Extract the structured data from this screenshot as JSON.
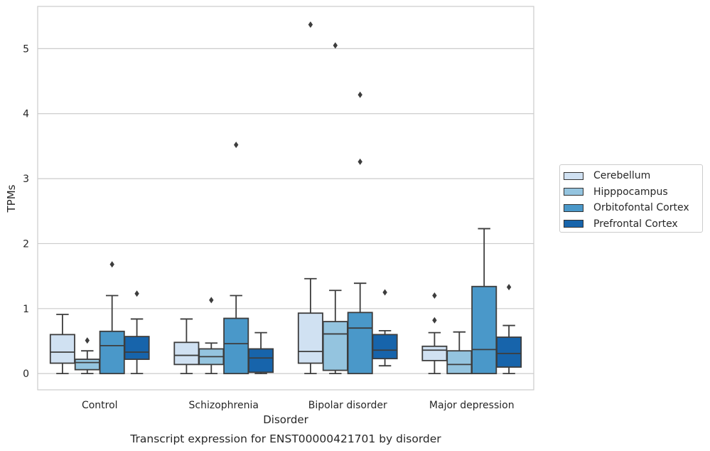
{
  "chart_data": {
    "type": "boxplot",
    "title": "Transcript expression for ENST00000421701 by disorder",
    "xlabel": "Disorder",
    "ylabel": "TPMs",
    "ylim": [
      -0.25,
      5.65
    ],
    "yticks": [
      0,
      1,
      2,
      3,
      4,
      5
    ],
    "categories": [
      "Control",
      "Schizophrenia",
      "Bipolar disorder",
      "Major depression"
    ],
    "grid": "horizontal",
    "legend_position": "right",
    "series": [
      {
        "name": "Cerebellum",
        "color": "#d0e1f2",
        "boxes": [
          {
            "whislo": 0.0,
            "q1": 0.16,
            "med": 0.33,
            "q3": 0.6,
            "whishi": 0.91,
            "fliers": []
          },
          {
            "whislo": 0.0,
            "q1": 0.14,
            "med": 0.28,
            "q3": 0.48,
            "whishi": 0.84,
            "fliers": []
          },
          {
            "whislo": 0.0,
            "q1": 0.16,
            "med": 0.34,
            "q3": 0.93,
            "whishi": 1.46,
            "fliers": [
              5.37
            ]
          },
          {
            "whislo": 0.0,
            "q1": 0.2,
            "med": 0.36,
            "q3": 0.42,
            "whishi": 0.63,
            "fliers": [
              0.82,
              1.2
            ]
          }
        ]
      },
      {
        "name": "Hipppocampus",
        "color": "#94c4df",
        "boxes": [
          {
            "whislo": 0.0,
            "q1": 0.06,
            "med": 0.17,
            "q3": 0.22,
            "whishi": 0.35,
            "fliers": [
              0.51
            ]
          },
          {
            "whislo": 0.0,
            "q1": 0.14,
            "med": 0.26,
            "q3": 0.38,
            "whishi": 0.47,
            "fliers": [
              1.13
            ]
          },
          {
            "whislo": 0.0,
            "q1": 0.05,
            "med": 0.61,
            "q3": 0.8,
            "whishi": 1.28,
            "fliers": [
              5.05
            ]
          },
          {
            "whislo": 0.0,
            "q1": 0.0,
            "med": 0.14,
            "q3": 0.35,
            "whishi": 0.64,
            "fliers": []
          }
        ]
      },
      {
        "name": "Orbitofontal Cortex",
        "color": "#4a98c9",
        "boxes": [
          {
            "whislo": 0.0,
            "q1": 0.0,
            "med": 0.43,
            "q3": 0.65,
            "whishi": 1.2,
            "fliers": [
              1.68
            ]
          },
          {
            "whislo": 0.0,
            "q1": 0.0,
            "med": 0.46,
            "q3": 0.85,
            "whishi": 1.2,
            "fliers": [
              3.52
            ]
          },
          {
            "whislo": 0.0,
            "q1": 0.0,
            "med": 0.7,
            "q3": 0.94,
            "whishi": 1.39,
            "fliers": [
              3.26,
              4.29
            ]
          },
          {
            "whislo": 0.0,
            "q1": 0.0,
            "med": 0.37,
            "q3": 1.34,
            "whishi": 2.23,
            "fliers": []
          }
        ]
      },
      {
        "name": "Prefrontal Cortex",
        "color": "#1764ab",
        "boxes": [
          {
            "whislo": 0.0,
            "q1": 0.22,
            "med": 0.33,
            "q3": 0.57,
            "whishi": 0.84,
            "fliers": [
              1.23
            ]
          },
          {
            "whislo": 0.0,
            "q1": 0.02,
            "med": 0.24,
            "q3": 0.38,
            "whishi": 0.63,
            "fliers": []
          },
          {
            "whislo": 0.12,
            "q1": 0.23,
            "med": 0.36,
            "q3": 0.6,
            "whishi": 0.66,
            "fliers": [
              1.25
            ]
          },
          {
            "whislo": 0.0,
            "q1": 0.1,
            "med": 0.31,
            "q3": 0.56,
            "whishi": 0.74,
            "fliers": [
              1.33
            ]
          }
        ]
      }
    ]
  }
}
